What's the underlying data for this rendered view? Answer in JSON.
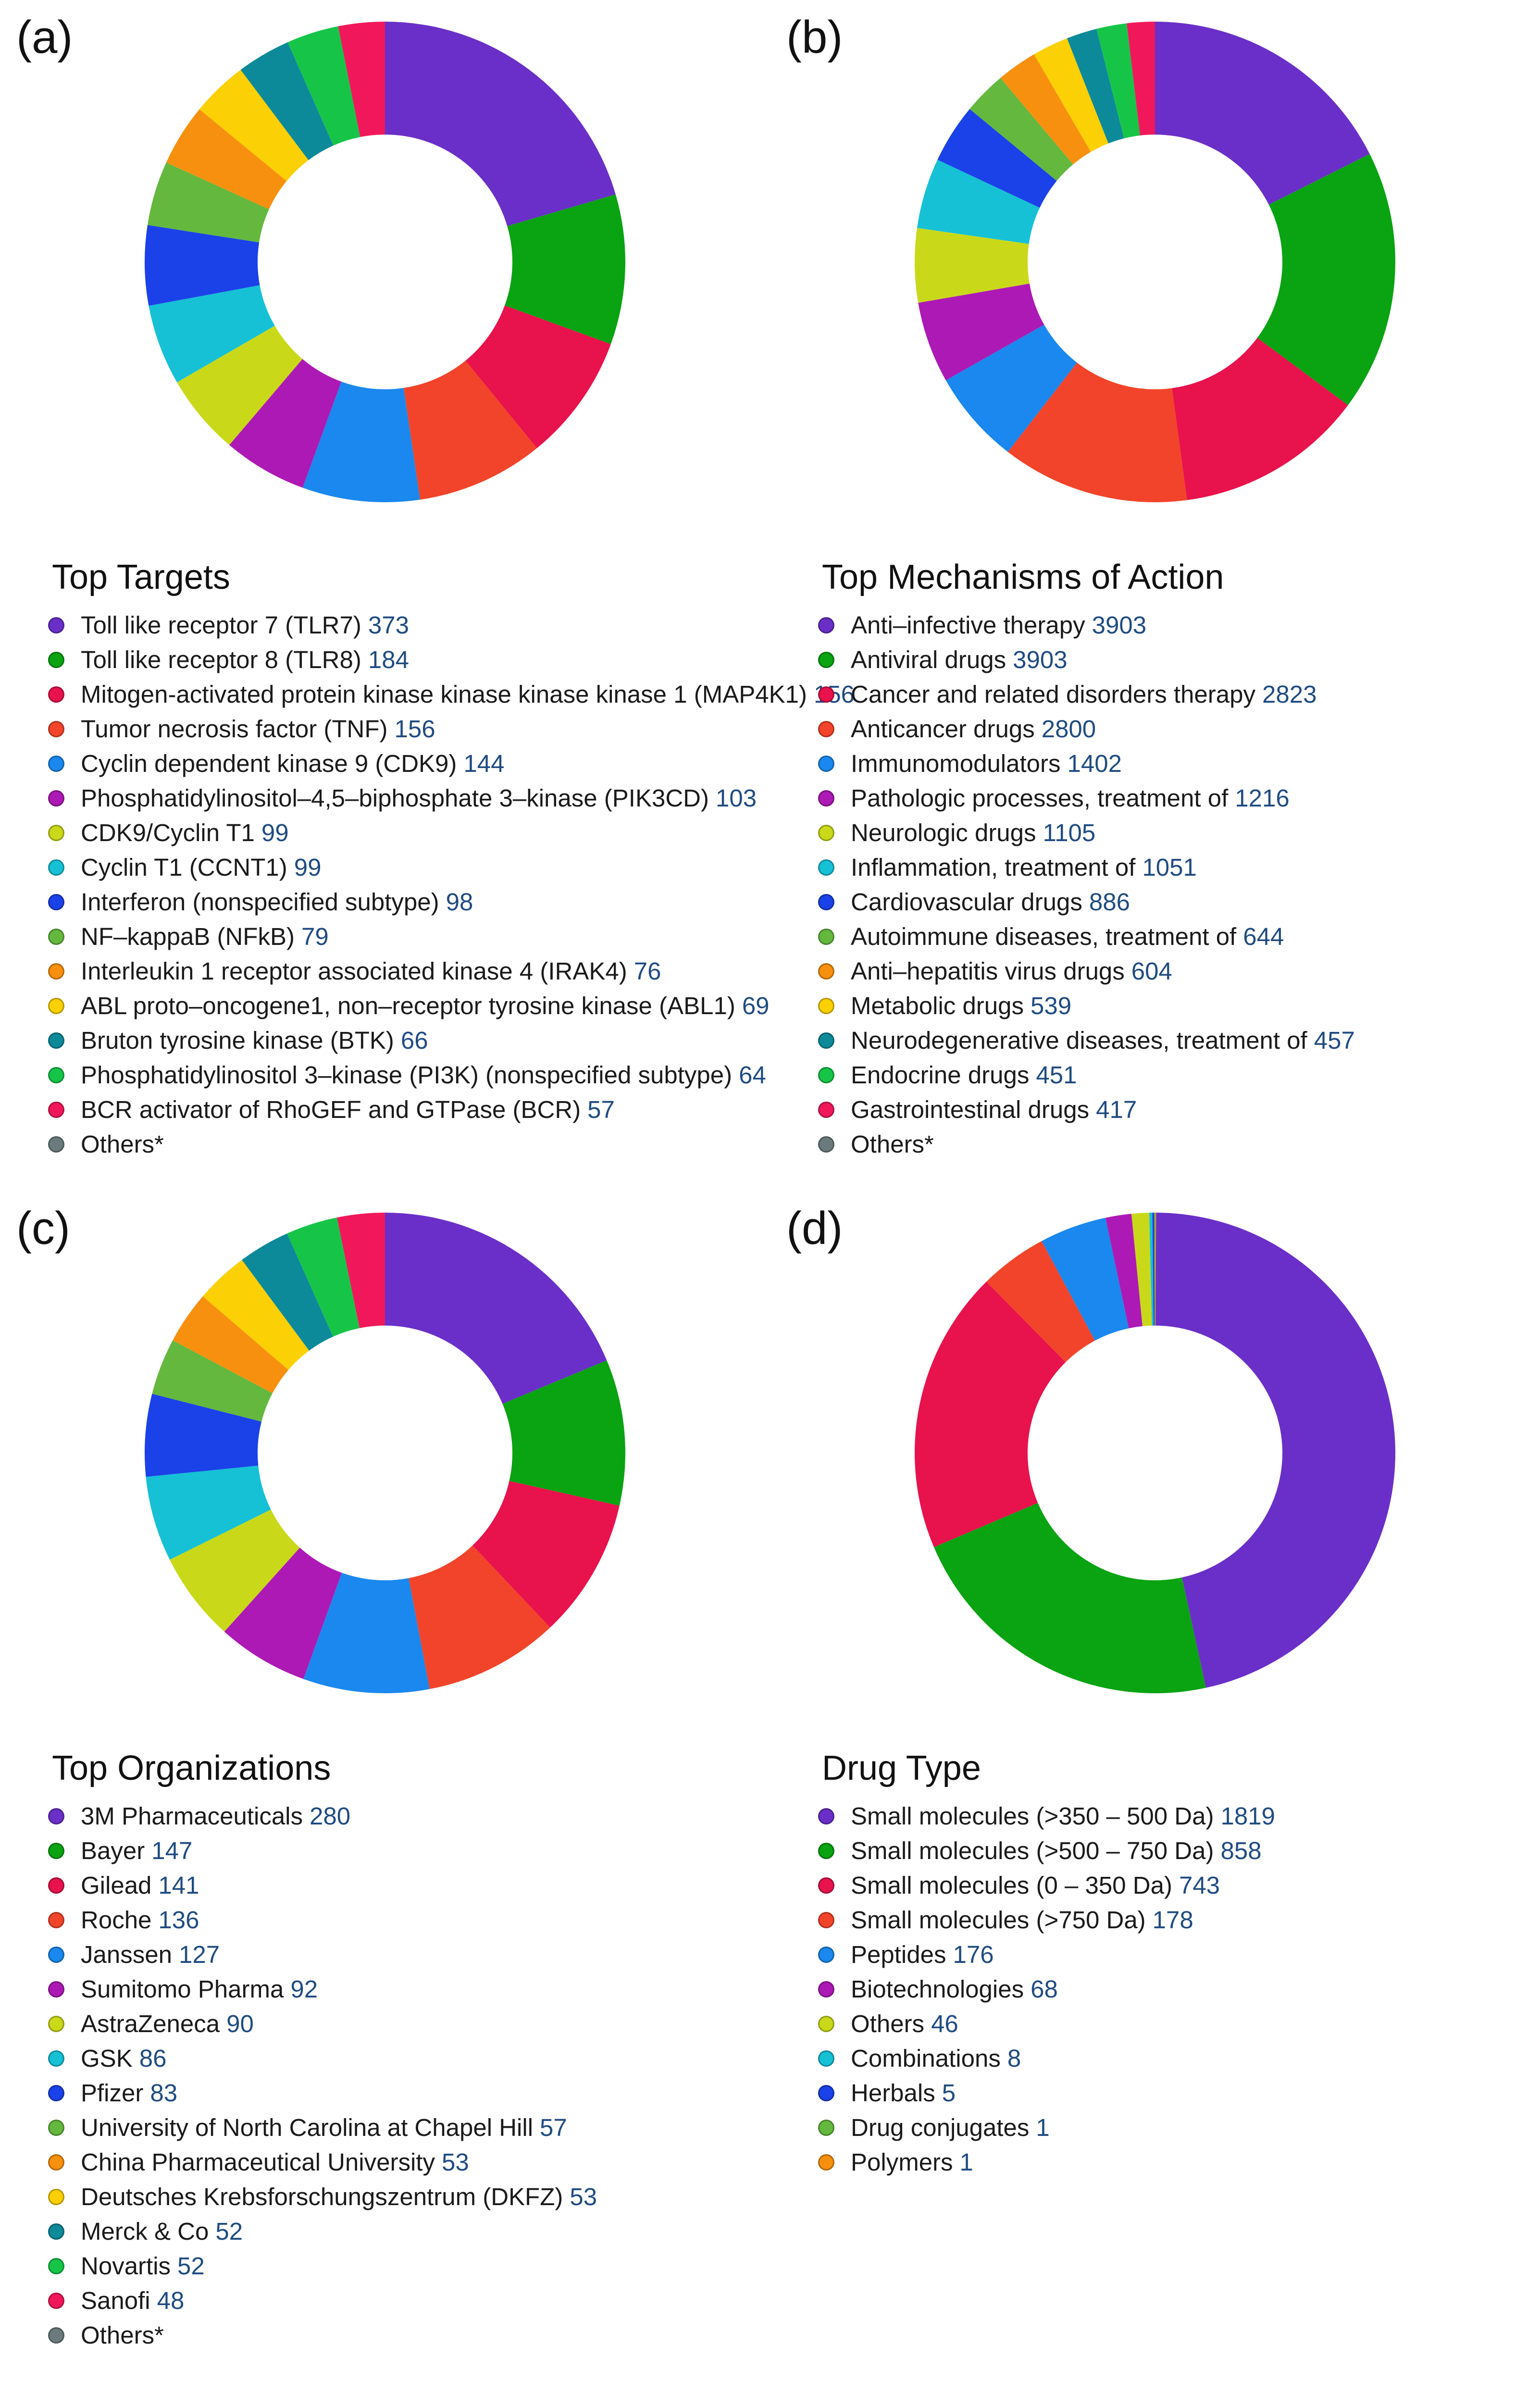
{
  "palette": [
    "#6a2fc8",
    "#0aa312",
    "#e8124c",
    "#f2442a",
    "#1a88ee",
    "#ad19b4",
    "#c9d91a",
    "#16c1d6",
    "#1b41e8",
    "#64b83e",
    "#f7900f",
    "#fbd004",
    "#0d8a9a",
    "#16c548",
    "#f0185a"
  ],
  "others_color": "#6b7b7d",
  "chart_data": [
    {
      "panel_label": "(a)",
      "type": "pie",
      "donut": true,
      "title": "Top Targets",
      "categories": [
        "Toll like receptor 7 (TLR7)",
        "Toll like receptor 8 (TLR8)",
        "Mitogen-activated protein kinase kinase kinase kinase 1 (MAP4K1)",
        "Tumor necrosis factor (TNF)",
        "Cyclin dependent kinase 9 (CDK9)",
        "Phosphatidylinositol–4,5–biphosphate 3–kinase (PIK3CD)",
        "CDK9/Cyclin T1",
        "Cyclin T1 (CCNT1)",
        "Interferon (nonspecified subtype)",
        "NF–kappaB (NFkB)",
        "Interleukin 1 receptor associated kinase 4 (IRAK4)",
        "ABL proto–oncogene1, non–receptor tyrosine kinase (ABL1)",
        "Bruton tyrosine kinase (BTK)",
        "Phosphatidylinositol 3–kinase (PI3K) (nonspecified subtype)",
        "BCR activator of RhoGEF and GTPase (BCR)"
      ],
      "values": [
        373,
        184,
        156,
        156,
        144,
        103,
        99,
        99,
        98,
        79,
        76,
        69,
        66,
        64,
        57
      ],
      "others_label": "Others*"
    },
    {
      "panel_label": "(b)",
      "type": "pie",
      "donut": true,
      "title": "Top Mechanisms of Action",
      "categories": [
        "Anti–infective therapy",
        "Antiviral drugs",
        "Cancer and related disorders therapy",
        "Anticancer drugs",
        "Immunomodulators",
        "Pathologic processes, treatment of",
        "Neurologic drugs",
        "Inflammation, treatment of",
        "Cardiovascular drugs",
        "Autoimmune diseases, treatment of",
        "Anti–hepatitis virus drugs",
        "Metabolic drugs",
        "Neurodegenerative diseases, treatment of",
        "Endocrine drugs",
        "Gastrointestinal drugs"
      ],
      "values": [
        3903,
        3903,
        2823,
        2800,
        1402,
        1216,
        1105,
        1051,
        886,
        644,
        604,
        539,
        457,
        451,
        417
      ],
      "others_label": "Others*"
    },
    {
      "panel_label": "(c)",
      "type": "pie",
      "donut": true,
      "title": "Top Organizations",
      "categories": [
        "3M Pharmaceuticals",
        "Bayer",
        "Gilead",
        "Roche",
        "Janssen",
        "Sumitomo Pharma",
        "AstraZeneca",
        "GSK",
        "Pfizer",
        "University of North Carolina at Chapel Hill",
        "China Pharmaceutical University",
        "Deutsches Krebsforschungszentrum (DKFZ)",
        "Merck & Co",
        "Novartis",
        "Sanofi"
      ],
      "values": [
        280,
        147,
        141,
        136,
        127,
        92,
        90,
        86,
        83,
        57,
        53,
        53,
        52,
        52,
        48
      ],
      "others_label": "Others*"
    },
    {
      "panel_label": "(d)",
      "type": "pie",
      "donut": true,
      "title": "Drug Type",
      "categories": [
        "Small molecules (>350 – 500 Da)",
        "Small molecules (>500 – 750 Da)",
        "Small molecules (0 – 350 Da)",
        "Small molecules (>750 Da)",
        "Peptides",
        "Biotechnologies",
        "Others",
        "Combinations",
        "Herbals",
        "Drug conjugates",
        "Polymers"
      ],
      "values": [
        1819,
        858,
        743,
        178,
        176,
        68,
        46,
        8,
        5,
        1,
        1
      ],
      "others_label": ""
    }
  ]
}
